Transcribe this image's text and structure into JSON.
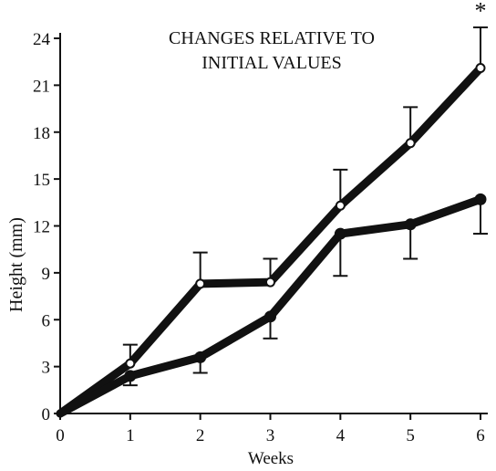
{
  "chart_data": {
    "type": "line",
    "title_lines": [
      "CHANGES RELATIVE TO",
      "INITIAL VALUES"
    ],
    "xlabel": "Weeks",
    "ylabel": "Height (mm)",
    "xlim": [
      0,
      6
    ],
    "ylim": [
      0,
      24
    ],
    "x_ticks": [
      0,
      1,
      2,
      3,
      4,
      5,
      6
    ],
    "y_ticks": [
      0,
      3,
      6,
      9,
      12,
      15,
      18,
      21,
      24
    ],
    "grid": false,
    "x": [
      0,
      1,
      2,
      3,
      4,
      5,
      6
    ],
    "series": [
      {
        "marker": "open-circle",
        "values": [
          0,
          3.2,
          8.3,
          8.4,
          13.3,
          17.3,
          22.1
        ],
        "error_upper": [
          null,
          1.2,
          2.0,
          1.5,
          2.3,
          2.3,
          2.6
        ],
        "error_lower": [
          null,
          null,
          null,
          null,
          null,
          null,
          null
        ]
      },
      {
        "marker": "filled-circle",
        "values": [
          0,
          2.4,
          3.6,
          6.2,
          11.5,
          12.1,
          13.7
        ],
        "error_upper": [
          null,
          null,
          null,
          null,
          null,
          null,
          null
        ],
        "error_lower": [
          null,
          0.6,
          1.0,
          1.4,
          2.7,
          2.2,
          2.2
        ]
      }
    ],
    "annotations": [
      {
        "text": "*",
        "x": 6,
        "y": 25.6
      }
    ],
    "colors": {
      "line": "#111111",
      "background": "#ffffff"
    }
  }
}
